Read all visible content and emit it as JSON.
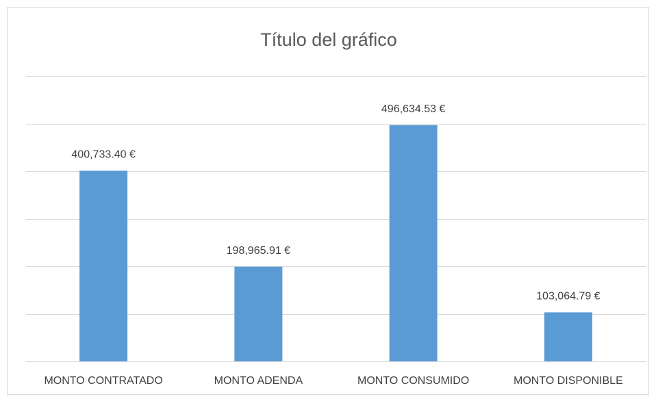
{
  "chart_data": {
    "type": "bar",
    "title": "Título del gráfico",
    "categories": [
      "MONTO CONTRATADO",
      "MONTO ADENDA",
      "MONTO CONSUMIDO",
      "MONTO DISPONIBLE"
    ],
    "values": [
      400733.4,
      198965.91,
      496634.53,
      103064.79
    ],
    "value_labels": [
      "400,733.40 €",
      "198,965.91 €",
      "496,634.53 €",
      "103,064.79 €"
    ],
    "color": "#5b9bd5",
    "ylim": [
      0,
      600000
    ],
    "yticks": [
      0,
      100000,
      200000,
      300000,
      400000,
      500000,
      600000
    ],
    "grid": true
  }
}
